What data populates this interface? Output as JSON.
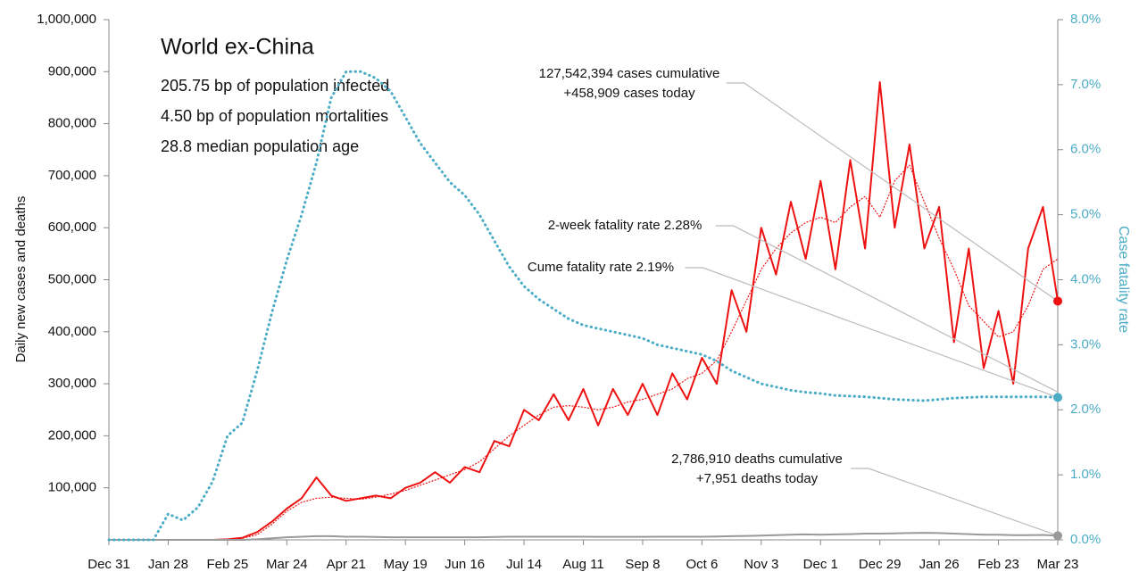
{
  "chart_data": {
    "type": "line",
    "title": "World ex-China",
    "subtitle_lines": [
      "205.75 bp of population infected",
      "4.50 bp of population mortalities",
      "28.8 median population age"
    ],
    "ylabel": "Daily new cases and deaths",
    "y2label": "Case fatality rate",
    "categories": [
      "Dec 31",
      null,
      null,
      null,
      "Jan 28",
      null,
      null,
      null,
      "Feb 25",
      null,
      null,
      null,
      "Mar 24",
      null,
      null,
      null,
      "Apr 21",
      null,
      null,
      null,
      "May 19",
      null,
      null,
      null,
      "Jun 16",
      null,
      null,
      null,
      "Jul 14",
      null,
      null,
      null,
      "Aug 11",
      null,
      null,
      null,
      "Sep 8",
      null,
      null,
      null,
      "Oct 6",
      null,
      null,
      null,
      "Nov 3",
      null,
      null,
      null,
      "Dec 1",
      null,
      null,
      null,
      "Dec 29",
      null,
      null,
      null,
      "Jan 26",
      null,
      null,
      null,
      "Feb 23",
      null,
      null,
      null,
      "Mar 23"
    ],
    "ylim": [
      0,
      1000000
    ],
    "yticks": [
      {
        "value": 100000,
        "label": "100,000"
      },
      {
        "value": 200000,
        "label": "200,000"
      },
      {
        "value": 300000,
        "label": "300,000"
      },
      {
        "value": 400000,
        "label": "400,000"
      },
      {
        "value": 500000,
        "label": "500,000"
      },
      {
        "value": 600000,
        "label": "600,000"
      },
      {
        "value": 700000,
        "label": "700,000"
      },
      {
        "value": 800000,
        "label": "800,000"
      },
      {
        "value": 900000,
        "label": "900,000"
      },
      {
        "value": 1000000,
        "label": "1,000,000"
      }
    ],
    "y2lim": [
      0,
      8
    ],
    "y2ticks": [
      {
        "value": 0,
        "label": "0.0%"
      },
      {
        "value": 1,
        "label": "1.0%"
      },
      {
        "value": 2,
        "label": "2.0%"
      },
      {
        "value": 3,
        "label": "3.0%"
      },
      {
        "value": 4,
        "label": "4.0%"
      },
      {
        "value": 5,
        "label": "5.0%"
      },
      {
        "value": 6,
        "label": "6.0%"
      },
      {
        "value": 7,
        "label": "7.0%"
      },
      {
        "value": 8,
        "label": "8.0%"
      }
    ],
    "series": [
      {
        "color": "#ee1111",
        "style": "solid",
        "end_marker": true,
        "values": [
          0,
          0,
          0,
          0,
          0,
          0,
          0,
          0,
          1000,
          4000,
          15000,
          35000,
          60000,
          80000,
          120000,
          85000,
          75000,
          80000,
          85000,
          80000,
          100000,
          110000,
          130000,
          110000,
          140000,
          130000,
          190000,
          180000,
          250000,
          230000,
          280000,
          230000,
          290000,
          220000,
          290000,
          240000,
          300000,
          240000,
          320000,
          270000,
          350000,
          300000,
          480000,
          400000,
          600000,
          510000,
          650000,
          540000,
          690000,
          520000,
          730000,
          560000,
          880000,
          600000,
          760000,
          560000,
          640000,
          380000,
          560000,
          330000,
          440000,
          300000,
          560000,
          640000,
          458909
        ]
      },
      {
        "color": "#ee1111",
        "style": "dotted-thin",
        "values": [
          0,
          0,
          0,
          0,
          0,
          0,
          0,
          0,
          1000,
          3000,
          10000,
          30000,
          55000,
          72000,
          80000,
          82000,
          80000,
          78000,
          82000,
          88000,
          95000,
          105000,
          115000,
          125000,
          135000,
          150000,
          175000,
          200000,
          220000,
          240000,
          255000,
          258000,
          255000,
          250000,
          255000,
          265000,
          270000,
          280000,
          290000,
          310000,
          320000,
          345000,
          400000,
          460000,
          520000,
          560000,
          590000,
          610000,
          620000,
          610000,
          640000,
          660000,
          620000,
          690000,
          720000,
          650000,
          580000,
          520000,
          450000,
          420000,
          390000,
          400000,
          450000,
          520000,
          540000
        ]
      },
      {
        "color": "#999999",
        "style": "solid",
        "end_marker": true,
        "values": [
          0,
          0,
          0,
          0,
          0,
          0,
          0,
          0,
          0,
          0,
          1000,
          3000,
          5000,
          6000,
          7000,
          7000,
          6000,
          6000,
          5500,
          5000,
          5000,
          5000,
          5000,
          5000,
          5000,
          5000,
          5500,
          6000,
          6000,
          6000,
          6000,
          6000,
          6000,
          5800,
          5800,
          5800,
          5800,
          6000,
          6000,
          6000,
          6000,
          6500,
          7000,
          7500,
          8000,
          9000,
          10000,
          10500,
          10000,
          10500,
          11000,
          12000,
          12000,
          12500,
          13000,
          13500,
          13000,
          12000,
          11000,
          10000,
          10000,
          9000,
          9000,
          9500,
          7951
        ]
      },
      {
        "color": "#4bacc6",
        "style": "dotted",
        "axis": "y2",
        "end_marker": true,
        "values": [
          0,
          0,
          0,
          0,
          0.4,
          0.3,
          0.5,
          0.9,
          1.6,
          1.8,
          2.6,
          3.5,
          4.3,
          5.0,
          5.8,
          6.8,
          7.2,
          7.2,
          7.1,
          6.9,
          6.5,
          6.1,
          5.8,
          5.5,
          5.3,
          5.0,
          4.6,
          4.2,
          3.9,
          3.7,
          3.55,
          3.4,
          3.3,
          3.25,
          3.2,
          3.15,
          3.1,
          3.0,
          2.95,
          2.9,
          2.85,
          2.75,
          2.6,
          2.5,
          2.4,
          2.35,
          2.3,
          2.27,
          2.25,
          2.22,
          2.21,
          2.2,
          2.18,
          2.16,
          2.15,
          2.14,
          2.16,
          2.18,
          2.19,
          2.2,
          2.2,
          2.2,
          2.2,
          2.2,
          2.19
        ]
      }
    ],
    "annotations": [
      {
        "lines": [
          "127,542,394 cases cumulative",
          "+458,909 cases today"
        ],
        "series": 0
      },
      {
        "lines": [
          "2-week fatality rate 2.28%"
        ],
        "series": 3
      },
      {
        "lines": [
          "Cume fatality rate 2.19%"
        ],
        "series": 3
      },
      {
        "lines": [
          "2,786,910 deaths cumulative",
          "+7,951 deaths today"
        ],
        "series": 2
      }
    ]
  }
}
